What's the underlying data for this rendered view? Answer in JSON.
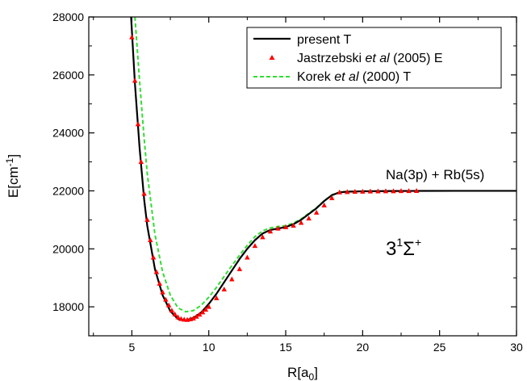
{
  "chart_data": {
    "type": "line",
    "xlabel": "R[a",
    "xlabel_sub": "0",
    "xlabel_close": "]",
    "ylabel": "E[cm",
    "ylabel_sup": "-1",
    "ylabel_close": "]",
    "xlim": [
      2.2,
      30
    ],
    "ylim": [
      17000,
      28000
    ],
    "x_ticks": [
      5,
      10,
      15,
      20,
      25,
      30
    ],
    "y_ticks": [
      18000,
      20000,
      22000,
      24000,
      26000,
      28000
    ],
    "legend_position": "top-right",
    "annotations": {
      "asymptote": "Na(3p) + Rb(5s)",
      "state_main": "3",
      "state_sup": "1",
      "state_sigma": "Σ",
      "state_plus": "+"
    },
    "series": [
      {
        "name": "present T",
        "legend_prefix": "present T",
        "legend_italic": "",
        "legend_suffix": "",
        "style": "solid",
        "color": "#000000",
        "x": [
          4.95,
          5.2,
          5.5,
          5.8,
          6.0,
          6.5,
          7.0,
          7.5,
          8.0,
          8.5,
          9.0,
          9.5,
          10.0,
          10.5,
          11.0,
          11.5,
          12.0,
          12.5,
          13.0,
          13.5,
          14.0,
          14.5,
          15.0,
          15.5,
          16.0,
          16.5,
          17.0,
          17.5,
          18.0,
          18.5,
          19.0,
          20.0,
          22.0,
          24.0,
          26.0,
          28.0,
          30.0
        ],
        "y": [
          28000,
          25700,
          23500,
          21700,
          20800,
          19300,
          18400,
          17850,
          17580,
          17530,
          17620,
          17800,
          18100,
          18450,
          18850,
          19250,
          19650,
          20000,
          20300,
          20530,
          20650,
          20700,
          20750,
          20850,
          21000,
          21200,
          21400,
          21650,
          21850,
          21950,
          21970,
          21985,
          21995,
          21998,
          22000,
          22000,
          22000
        ]
      },
      {
        "name": "Jastrzebski et al (2005) E",
        "legend_prefix": "Jastrzebski ",
        "legend_italic": "et al",
        "legend_suffix": " (2005) E",
        "style": "markers",
        "color": "#ff0000",
        "x": [
          5.0,
          5.2,
          5.4,
          5.6,
          5.8,
          6.0,
          6.2,
          6.4,
          6.6,
          6.8,
          7.0,
          7.2,
          7.4,
          7.6,
          7.8,
          8.0,
          8.2,
          8.4,
          8.6,
          8.8,
          9.0,
          9.2,
          9.4,
          9.6,
          9.8,
          10.0,
          10.5,
          11.0,
          11.5,
          12.0,
          12.5,
          13.0,
          13.5,
          14.0,
          14.5,
          15.0,
          15.5,
          16.0,
          16.5,
          17.0,
          17.5,
          18.0,
          18.5,
          19.0,
          19.5,
          20.0,
          20.5,
          21.0,
          21.5,
          22.0,
          22.5,
          23.0,
          23.5
        ],
        "y": [
          27300,
          25800,
          24300,
          23000,
          21900,
          21000,
          20300,
          19700,
          19200,
          18800,
          18500,
          18250,
          18050,
          17870,
          17740,
          17640,
          17580,
          17560,
          17550,
          17570,
          17600,
          17660,
          17730,
          17810,
          17900,
          18000,
          18300,
          18600,
          18950,
          19300,
          19700,
          20100,
          20400,
          20600,
          20700,
          20750,
          20800,
          20900,
          21050,
          21250,
          21500,
          21750,
          21950,
          21960,
          21970,
          21975,
          21980,
          21985,
          21990,
          21990,
          21995,
          21995,
          22000
        ]
      },
      {
        "name": "Korek et al (2000) T",
        "legend_prefix": "Korek ",
        "legend_italic": "et al",
        "legend_suffix": " (2000) T",
        "style": "dashed",
        "color": "#33dd33",
        "x": [
          5.2,
          5.5,
          5.8,
          6.0,
          6.5,
          7.0,
          7.5,
          8.0,
          8.5,
          9.0,
          9.5,
          10.0,
          10.5,
          11.0,
          11.5,
          12.0,
          12.5,
          13.0,
          13.5,
          14.0,
          14.5,
          15.0,
          15.5,
          16.0,
          16.5,
          17.0,
          17.5,
          18.0,
          18.5,
          19.0,
          20.0,
          22.0,
          24.0,
          26.0,
          28.0,
          30.0
        ],
        "y": [
          28000,
          25800,
          23800,
          22600,
          20500,
          19200,
          18400,
          17960,
          17830,
          17870,
          18050,
          18330,
          18670,
          19050,
          19420,
          19780,
          20120,
          20420,
          20620,
          20720,
          20770,
          20800,
          20890,
          21030,
          21220,
          21420,
          21660,
          21860,
          21960,
          21980,
          21990,
          21995,
          22000,
          22000,
          22000,
          22000
        ]
      }
    ]
  }
}
